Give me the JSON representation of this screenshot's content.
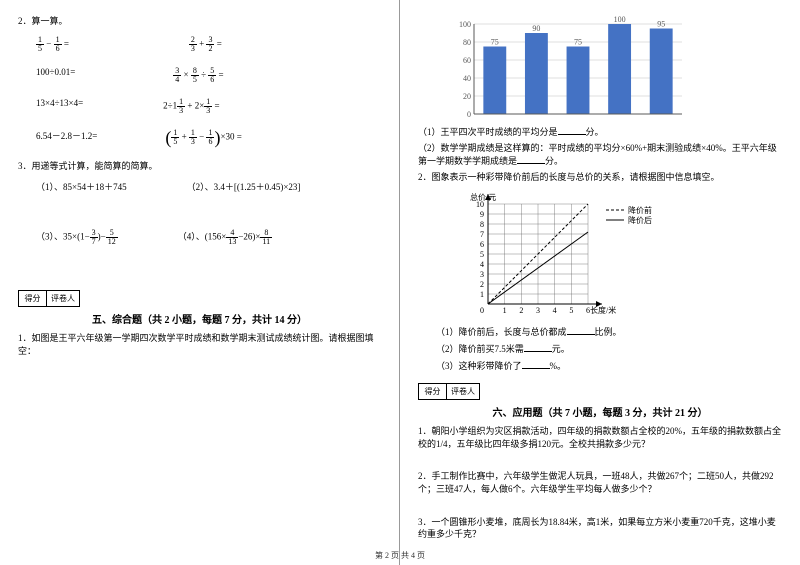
{
  "left": {
    "q2_title": "2．算一算。",
    "q2_rows": [
      {
        "a_html": "frac15-frac16=",
        "b_html": "frac23+frac32="
      },
      {
        "a_html": "100÷0.01=",
        "b_html": "frac34×frac85÷frac56="
      },
      {
        "a_html": "13×4÷13×4=",
        "b_html": "2÷1frac13+2×frac13="
      },
      {
        "a_html": "6.54－2.8－1.2=",
        "b_html": "paren(frac15+frac13-frac16)×30 ="
      }
    ],
    "q3_title": "3．用递等式计算，能简算的简算。",
    "q3_items": [
      "（1）、85×54＋18＋745",
      "（2）、3.4＋[(1.25＋0.45)×23]",
      "(3)_frac、35×(1-frac37)-frac512",
      "(4)_frac、(156×frac413-26)×frac811"
    ],
    "score_labels": [
      "得分",
      "评卷人"
    ],
    "section5_title": "五、综合题（共 2 小题，每题 7 分，共计 14 分）",
    "q5_1": "1．如图是王平六年级第一学期四次数学平时成绩和数学期末测试成绩统计图。请根据图填空："
  },
  "right": {
    "bar_chart": {
      "y_max": 100,
      "y_step": 20,
      "y_ticks": [
        0,
        20,
        40,
        60,
        80,
        100
      ],
      "bars": [
        {
          "label": "",
          "value": 75,
          "show_label": "75"
        },
        {
          "label": "",
          "value": 90,
          "show_label": "90"
        },
        {
          "label": "",
          "value": 75,
          "show_label": "75"
        },
        {
          "label": "",
          "value": 100,
          "show_label": "100"
        },
        {
          "label": "",
          "value": 95,
          "show_label": "95"
        }
      ],
      "bar_color": "#4472c4",
      "grid_color": "#bfbfbf",
      "axis_color": "#595959",
      "label_fontsize": 8
    },
    "r1": "（1）王平四次平时成绩的平均分是______分。",
    "r2": "（2）数学学期成绩是这样算的：平时成绩的平均分×60%+期末测验成绩×40%。王平六年级第一学期数学学期成绩是______分。",
    "r3": "2．图象表示一种彩带降价前后的长度与总价的关系，请根据图中信息填空。",
    "line_chart": {
      "x_label": "长度/米",
      "y_label": "总价/元",
      "x_ticks": [
        1,
        2,
        3,
        4,
        5,
        6
      ],
      "y_ticks": [
        1,
        2,
        3,
        4,
        5,
        6,
        7,
        8,
        9,
        10
      ],
      "grid_rows": 10,
      "grid_cols": 6,
      "line_before": {
        "dash": true,
        "points": [
          [
            0,
            0
          ],
          [
            6,
            10
          ]
        ]
      },
      "line_after": {
        "dash": false,
        "points": [
          [
            0,
            0
          ],
          [
            6,
            7.2
          ]
        ]
      },
      "legend": {
        "before": "降价前",
        "after": "降价后"
      },
      "axis_color": "#000000",
      "grid_color": "#666666",
      "label_fontsize": 8
    },
    "lc_q1": "（1）降价前后，长度与总价都成______比例。",
    "lc_q2": "（2）降价前买7.5米需______元。",
    "lc_q3": "（3）这种彩带降价了______%。",
    "score_labels": [
      "得分",
      "评卷人"
    ],
    "section6_title": "六、应用题（共 7 小题，每题 3 分，共计 21 分）",
    "q6_1": "1．朝阳小学组织为灾区捐款活动，四年级的捐款数额占全校的20%，五年级的捐款数额占全校的1/4，五年级比四年级多捐120元。全校共捐款多少元？",
    "q6_2": "2．手工制作比赛中，六年级学生做泥人玩具，一班48人，共做267个；二班50人，共做292个；三班47人，每人做6个。六年级学生平均每人做多少个？",
    "q6_3": "3．一个圆锥形小麦堆，底周长为18.84米，高1米，如果每立方米小麦重720千克，这堆小麦约重多少千克？"
  },
  "footer": "第 2 页 共 4 页"
}
